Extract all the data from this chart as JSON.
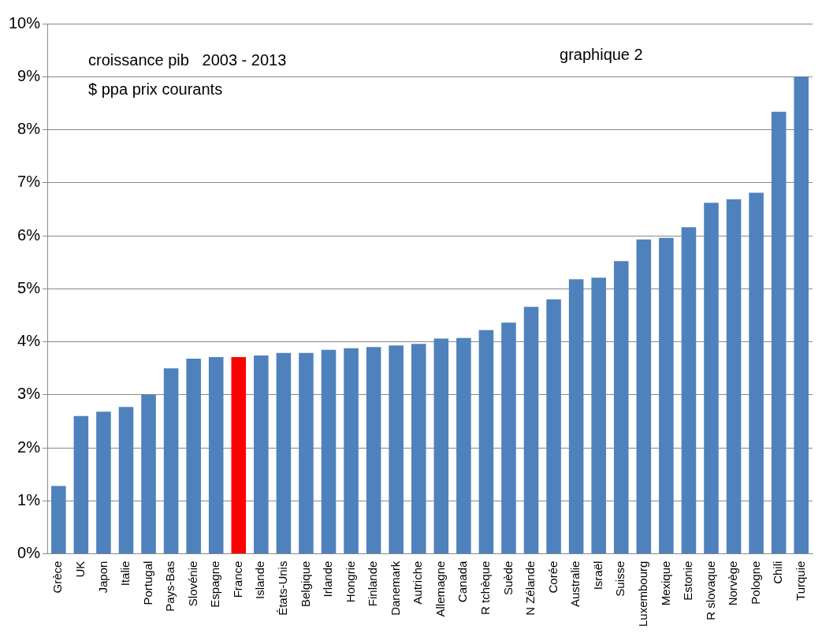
{
  "chart_data": {
    "type": "bar",
    "annotations": [
      "croissance pib   2003 - 2013",
      "$ ppa prix courants",
      "graphique 2"
    ],
    "categories": [
      "Grèce",
      "UK",
      "Japon",
      "Italie",
      "Portugal",
      "Pays-Bas",
      "Slovénie",
      "Espagne",
      "France",
      "Islande",
      "États-Unis",
      "Belgique",
      "Irlande",
      "Hongrie",
      "Finlande",
      "Danemark",
      "Autriche",
      "Allemagne",
      "Canada",
      "R tchèque",
      "Suède",
      "N Zélande",
      "Corée",
      "Australie",
      "Israël",
      "Suisse",
      "Luxembourg",
      "Mexique",
      "Estonie",
      "R slovaque",
      "Norvège",
      "Pologne",
      "Chili",
      "Turquie"
    ],
    "values": [
      1.28,
      2.6,
      2.68,
      2.77,
      3.0,
      3.5,
      3.68,
      3.71,
      3.71,
      3.74,
      3.79,
      3.79,
      3.85,
      3.88,
      3.9,
      3.93,
      3.96,
      4.06,
      4.07,
      4.22,
      4.36,
      4.66,
      4.8,
      5.18,
      5.21,
      5.52,
      5.93,
      5.96,
      6.16,
      6.62,
      6.69,
      6.81,
      8.34,
      9.0
    ],
    "colors": [
      "#4f81bd",
      "#4f81bd",
      "#4f81bd",
      "#4f81bd",
      "#4f81bd",
      "#4f81bd",
      "#4f81bd",
      "#4f81bd",
      "#ff0000",
      "#4f81bd",
      "#4f81bd",
      "#4f81bd",
      "#4f81bd",
      "#4f81bd",
      "#4f81bd",
      "#4f81bd",
      "#4f81bd",
      "#4f81bd",
      "#4f81bd",
      "#4f81bd",
      "#4f81bd",
      "#4f81bd",
      "#4f81bd",
      "#4f81bd",
      "#4f81bd",
      "#4f81bd",
      "#4f81bd",
      "#4f81bd",
      "#4f81bd",
      "#4f81bd",
      "#4f81bd",
      "#4f81bd",
      "#4f81bd",
      "#4f81bd"
    ],
    "ylim": [
      0,
      10
    ],
    "yticks": [
      {
        "value": 0,
        "label": "0%"
      },
      {
        "value": 1,
        "label": "1%"
      },
      {
        "value": 2,
        "label": "2%"
      },
      {
        "value": 3,
        "label": "3%"
      },
      {
        "value": 4,
        "label": "4%"
      },
      {
        "value": 5,
        "label": "5%"
      },
      {
        "value": 6,
        "label": "6%"
      },
      {
        "value": 7,
        "label": "7%"
      },
      {
        "value": 8,
        "label": "8%"
      },
      {
        "value": 9,
        "label": "9%"
      },
      {
        "value": 10,
        "label": "10%"
      }
    ],
    "grid": "y",
    "legend": false
  }
}
